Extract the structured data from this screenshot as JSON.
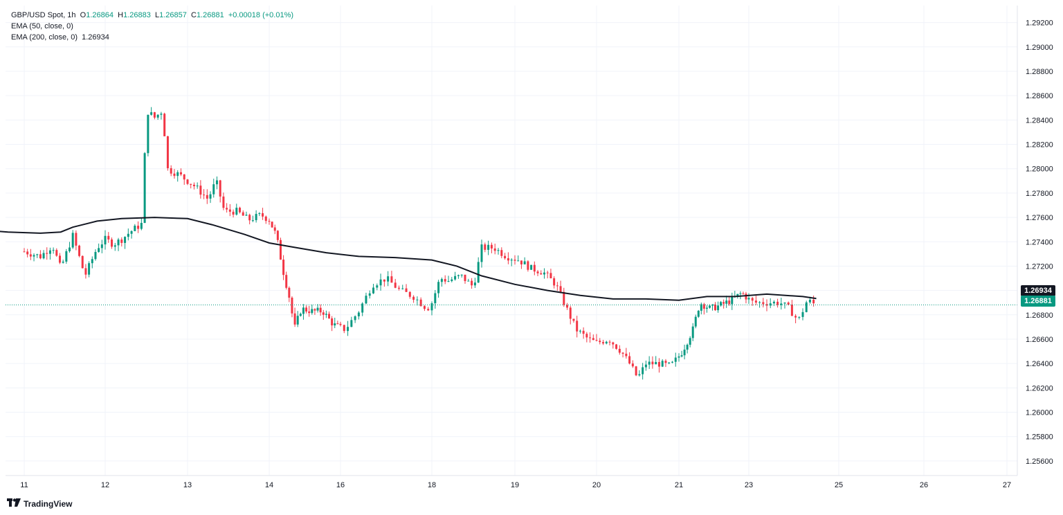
{
  "legend": {
    "symbol": "GBP/USD Spot, 1h",
    "open_label": "O",
    "open": "1.26864",
    "high_label": "H",
    "high": "1.26883",
    "low_label": "L",
    "low": "1.26857",
    "close_label": "C",
    "close": "1.26881",
    "change": "+0.00018 (+0.01%)",
    "ema50": "EMA (50, close, 0)",
    "ema200": "EMA (200, close, 0)",
    "ema200_value": "1.26934"
  },
  "brand": {
    "name": "TradingView"
  },
  "tags": {
    "ema200": "1.26934",
    "last": "1.26881"
  },
  "colors": {
    "up": "#089981",
    "down": "#F23645",
    "ema": "#131722",
    "grid": "#f0f3fa"
  },
  "chart_data": {
    "type": "candlestick",
    "ylim": [
      1.2548,
      1.2934
    ],
    "y_ticks": [
      "1.29200",
      "1.29000",
      "1.28800",
      "1.28600",
      "1.28400",
      "1.28200",
      "1.28000",
      "1.27800",
      "1.27600",
      "1.27400",
      "1.27200",
      "1.27000",
      "1.26800",
      "1.26600",
      "1.26400",
      "1.26200",
      "1.26000",
      "1.25800",
      "1.25600"
    ],
    "y_tick_values": [
      1.292,
      1.29,
      1.288,
      1.286,
      1.284,
      1.282,
      1.28,
      1.278,
      1.276,
      1.274,
      1.272,
      1.27,
      1.268,
      1.266,
      1.264,
      1.262,
      1.26,
      1.258,
      1.256
    ],
    "x_ticks": [
      {
        "label": "11",
        "pos": 0.0
      },
      {
        "label": "12",
        "pos": 1.0
      },
      {
        "label": "13",
        "pos": 2.0
      },
      {
        "label": "14",
        "pos": 3.0
      },
      {
        "label": "16",
        "pos": 4.0
      },
      {
        "label": "18",
        "pos": 5.0
      },
      {
        "label": "19",
        "pos": 6.0
      },
      {
        "label": "20",
        "pos": 7.0
      },
      {
        "label": "21",
        "pos": 8.0
      },
      {
        "label": "23",
        "pos": 9.0
      },
      {
        "label": "25",
        "pos": 10.0
      },
      {
        "label": "26",
        "pos": 11.0
      },
      {
        "label": "27",
        "pos": 12.0
      }
    ],
    "close_path": [
      [
        0.0,
        1.2732
      ],
      [
        0.2,
        1.2728
      ],
      [
        0.35,
        1.2737
      ],
      [
        0.45,
        1.2718
      ],
      [
        0.6,
        1.2745
      ],
      [
        0.75,
        1.2712
      ],
      [
        0.9,
        1.2735
      ],
      [
        1.0,
        1.2742
      ],
      [
        1.1,
        1.2738
      ],
      [
        1.2,
        1.2742
      ],
      [
        1.3,
        1.2748
      ],
      [
        1.45,
        1.2755
      ],
      [
        1.5,
        1.2848
      ],
      [
        1.6,
        1.2842
      ],
      [
        1.7,
        1.2848
      ],
      [
        1.75,
        1.28
      ],
      [
        1.9,
        1.2795
      ],
      [
        2.1,
        1.2785
      ],
      [
        2.25,
        1.2775
      ],
      [
        2.35,
        1.279
      ],
      [
        2.45,
        1.2765
      ],
      [
        2.6,
        1.2765
      ],
      [
        2.75,
        1.2758
      ],
      [
        2.9,
        1.2762
      ],
      [
        3.0,
        1.2758
      ],
      [
        3.1,
        1.2745
      ],
      [
        3.2,
        1.2715
      ],
      [
        3.3,
        1.269
      ],
      [
        3.35,
        1.2668
      ],
      [
        3.45,
        1.2685
      ],
      [
        3.6,
        1.2683
      ],
      [
        3.75,
        1.2683
      ],
      [
        3.9,
        1.2672
      ],
      [
        4.05,
        1.2668
      ],
      [
        4.2,
        1.2683
      ],
      [
        4.35,
        1.2705
      ],
      [
        4.5,
        1.271
      ],
      [
        4.65,
        1.27
      ],
      [
        4.8,
        1.2695
      ],
      [
        4.95,
        1.2685
      ],
      [
        5.0,
        1.269
      ],
      [
        5.1,
        1.271
      ],
      [
        5.2,
        1.2708
      ],
      [
        5.35,
        1.2712
      ],
      [
        5.5,
        1.2703
      ],
      [
        5.6,
        1.2735
      ],
      [
        5.75,
        1.2735
      ],
      [
        5.9,
        1.2728
      ],
      [
        6.05,
        1.2725
      ],
      [
        6.2,
        1.2718
      ],
      [
        6.35,
        1.2715
      ],
      [
        6.5,
        1.2705
      ],
      [
        6.6,
        1.269
      ],
      [
        6.75,
        1.2668
      ],
      [
        6.9,
        1.266
      ],
      [
        7.0,
        1.2657
      ],
      [
        7.15,
        1.266
      ],
      [
        7.3,
        1.265
      ],
      [
        7.4,
        1.264
      ],
      [
        7.5,
        1.2628
      ],
      [
        7.6,
        1.264
      ],
      [
        7.75,
        1.264
      ],
      [
        7.9,
        1.2638
      ],
      [
        8.05,
        1.265
      ],
      [
        8.2,
        1.2668
      ],
      [
        8.3,
        1.269
      ],
      [
        8.45,
        1.2685
      ],
      [
        8.6,
        1.2688
      ],
      [
        8.75,
        1.2692
      ],
      [
        8.9,
        1.2698
      ],
      [
        9.05,
        1.269
      ],
      [
        9.2,
        1.269
      ],
      [
        9.35,
        1.269
      ],
      [
        9.45,
        1.2685
      ],
      [
        9.55,
        1.2675
      ],
      [
        9.65,
        1.2692
      ],
      [
        9.75,
        1.2688
      ]
    ],
    "ema200": [
      [
        -0.9,
        1.2752
      ],
      [
        -0.6,
        1.275
      ],
      [
        -0.2,
        1.2748
      ],
      [
        0.2,
        1.2747
      ],
      [
        0.45,
        1.2748
      ],
      [
        0.6,
        1.2752
      ],
      [
        0.9,
        1.2757
      ],
      [
        1.2,
        1.2759
      ],
      [
        1.6,
        1.276
      ],
      [
        2.0,
        1.2759
      ],
      [
        2.3,
        1.2754
      ],
      [
        2.7,
        1.2746
      ],
      [
        3.0,
        1.2739
      ],
      [
        3.4,
        1.2735
      ],
      [
        3.8,
        1.2731
      ],
      [
        4.2,
        1.2728
      ],
      [
        4.6,
        1.2727
      ],
      [
        5.0,
        1.2725
      ],
      [
        5.3,
        1.272
      ],
      [
        5.6,
        1.2712
      ],
      [
        6.0,
        1.2705
      ],
      [
        6.4,
        1.27
      ],
      [
        6.8,
        1.2696
      ],
      [
        7.2,
        1.2693
      ],
      [
        7.6,
        1.2693
      ],
      [
        8.0,
        1.2692
      ],
      [
        8.4,
        1.2695
      ],
      [
        8.8,
        1.2695
      ],
      [
        9.2,
        1.2697
      ],
      [
        9.6,
        1.2695
      ],
      [
        9.75,
        1.26934
      ]
    ]
  }
}
